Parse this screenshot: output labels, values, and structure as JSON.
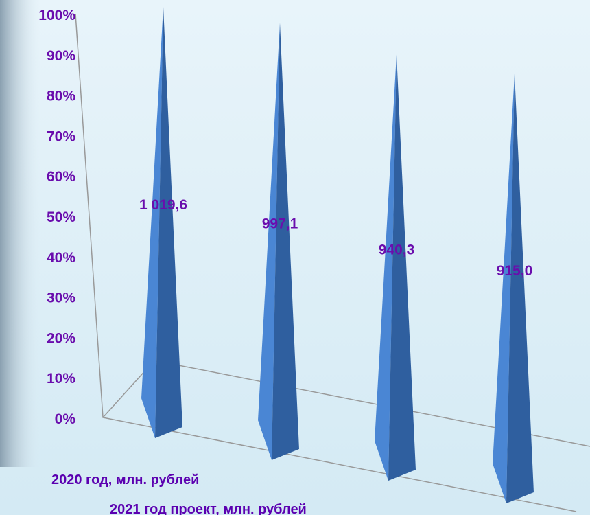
{
  "chart_data": {
    "type": "pyramid",
    "categories": [
      "2020 год, млн. рублей",
      "2021 год проект, млн. рублей",
      null,
      null
    ],
    "values": [
      100,
      97.8,
      92.2,
      89.7
    ],
    "value_labels": [
      "1 019,6",
      "997,1",
      "940,3",
      "915,0"
    ],
    "color": "#4a86d4",
    "ylim": [
      0,
      100
    ],
    "yticks": [
      {
        "value": 0,
        "label": "0%"
      },
      {
        "value": 10,
        "label": "10%"
      },
      {
        "value": 20,
        "label": "20%"
      },
      {
        "value": 30,
        "label": "30%"
      },
      {
        "value": 40,
        "label": "40%"
      },
      {
        "value": 50,
        "label": "50%"
      },
      {
        "value": 60,
        "label": "60%"
      },
      {
        "value": 70,
        "label": "70%"
      },
      {
        "value": 80,
        "label": "80%"
      },
      {
        "value": 90,
        "label": "90%"
      },
      {
        "value": 100,
        "label": "100%"
      }
    ]
  }
}
